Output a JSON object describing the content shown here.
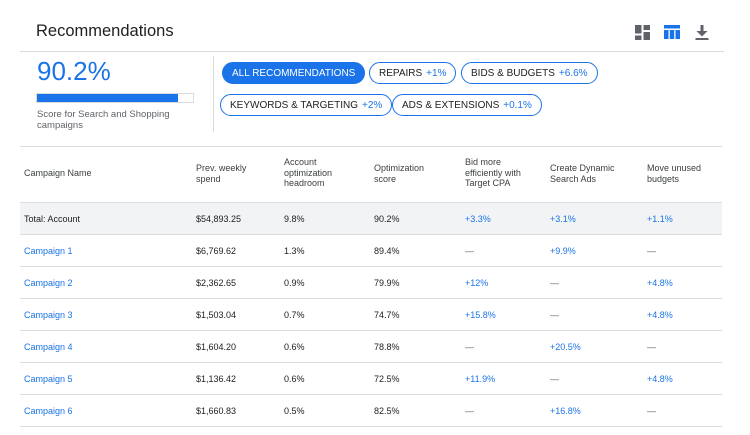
{
  "header": {
    "title": "Recommendations",
    "icons": [
      "dashboard-icon",
      "table-view-icon",
      "download-icon"
    ],
    "accent": "#1a73e8"
  },
  "score": {
    "value": "90.2%",
    "fill": 0.902,
    "caption": "Score for Search and Shopping campaigns"
  },
  "chips": [
    {
      "label": "ALL RECOMMENDATIONS",
      "delta": "",
      "active": true
    },
    {
      "label": "REPAIRS",
      "delta": "+1%",
      "active": false
    },
    {
      "label": "BIDS & BUDGETS",
      "delta": "+6.6%",
      "active": false
    },
    {
      "label": "KEYWORDS & TARGETING",
      "delta": "+2%",
      "active": false
    },
    {
      "label": "ADS & EXTENSIONS",
      "delta": "+0.1%",
      "active": false
    }
  ],
  "table": {
    "columns": [
      "Campaign Name",
      "Prev. weekly spend",
      "Account optimization headroom",
      "Optimization score",
      "Bid more efficiently with Target CPA",
      "Create Dynamic Search Ads",
      "Move unused budgets"
    ],
    "rows": [
      {
        "name": "Total: Account",
        "spend": "$54,893.25",
        "headroom": "9.8%",
        "score": "90.2%",
        "cpa": "+3.3%",
        "dsa": "+3.1%",
        "budgets": "+1.1%"
      },
      {
        "name": "Campaign 1",
        "spend": "$6,769.62",
        "headroom": "1.3%",
        "score": "89.4%",
        "cpa": "—",
        "dsa": "+9.9%",
        "budgets": "—"
      },
      {
        "name": "Campaign 2",
        "spend": "$2,362.65",
        "headroom": "0.9%",
        "score": "79.9%",
        "cpa": "+12%",
        "dsa": "—",
        "budgets": "+4.8%"
      },
      {
        "name": "Campaign 3",
        "spend": "$1,503.04",
        "headroom": "0.7%",
        "score": "74.7%",
        "cpa": "+15.8%",
        "dsa": "—",
        "budgets": "+4.8%"
      },
      {
        "name": "Campaign 4",
        "spend": "$1,604.20",
        "headroom": "0.6%",
        "score": "78.8%",
        "cpa": "—",
        "dsa": "+20.5%",
        "budgets": "—"
      },
      {
        "name": "Campaign 5",
        "spend": "$1,136.42",
        "headroom": "0.6%",
        "score": "72.5%",
        "cpa": "+11.9%",
        "dsa": "—",
        "budgets": "+4.8%"
      },
      {
        "name": "Campaign 6",
        "spend": "$1,660.83",
        "headroom": "0.5%",
        "score": "82.5%",
        "cpa": "—",
        "dsa": "+16.8%",
        "budgets": "—"
      }
    ]
  }
}
